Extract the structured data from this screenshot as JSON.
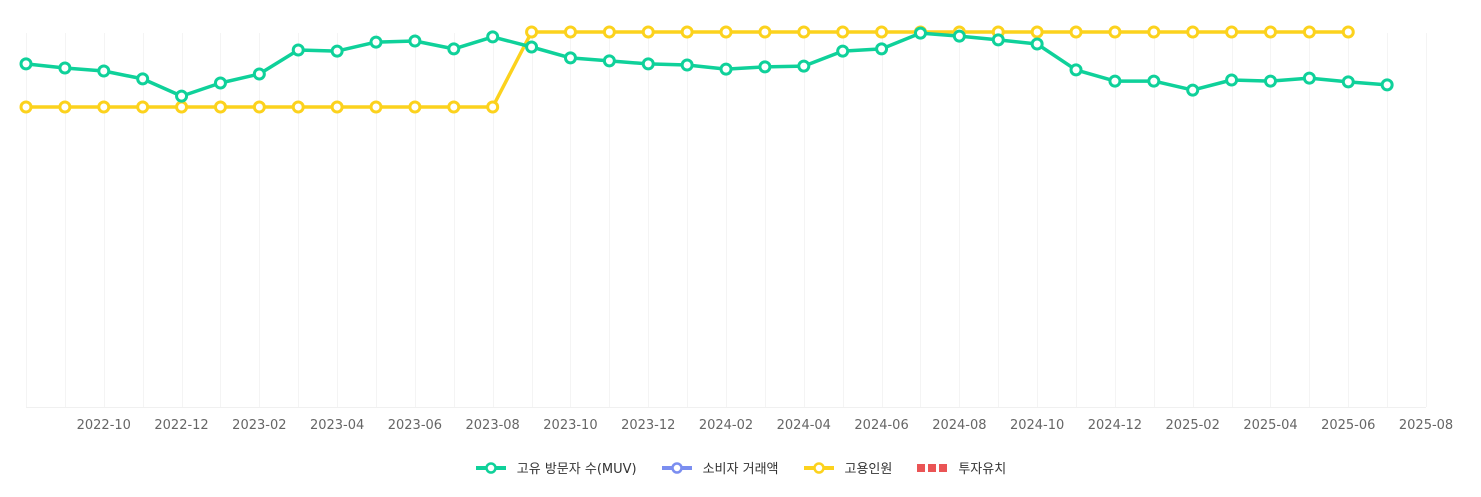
{
  "chart_data": {
    "type": "line",
    "title": "",
    "xlabel": "",
    "ylabel": "",
    "ylim_note": "No y-axis labels shown; values are relative (0-100 scale, estimated from pixel positions)",
    "ylim": [
      0,
      100
    ],
    "grid": {
      "vertical": true,
      "horizontal": false
    },
    "legend_position": "bottom",
    "x": [
      "2022-08",
      "2022-09",
      "2022-10",
      "2022-11",
      "2022-12",
      "2023-01",
      "2023-02",
      "2023-03",
      "2023-04",
      "2023-05",
      "2023-06",
      "2023-07",
      "2023-08",
      "2023-09",
      "2023-10",
      "2023-11",
      "2023-12",
      "2024-01",
      "2024-02",
      "2024-03",
      "2024-04",
      "2024-05",
      "2024-06",
      "2024-07",
      "2024-08",
      "2024-09",
      "2024-10",
      "2024-11",
      "2024-12",
      "2025-01",
      "2025-02",
      "2025-03",
      "2025-04",
      "2025-05",
      "2025-06",
      "2025-07"
    ],
    "tick_labels": [
      "2022-10",
      "2022-12",
      "2023-02",
      "2023-04",
      "2023-06",
      "2023-08",
      "2023-10",
      "2023-12",
      "2024-02",
      "2024-04",
      "2024-06",
      "2024-08",
      "2024-10",
      "2024-12",
      "2025-02",
      "2025-04",
      "2025-06",
      "2025-08"
    ],
    "series": [
      {
        "name": "고유 방문자 수(MUV)",
        "color": "#0fd19a",
        "marker": "hollow-circle",
        "values": [
          91.5,
          90.4,
          89.6,
          87.5,
          82.9,
          86.4,
          88.8,
          95.2,
          94.9,
          97.3,
          97.6,
          95.5,
          98.7,
          96.0,
          93.1,
          92.3,
          91.5,
          91.2,
          90.1,
          90.7,
          90.9,
          94.9,
          95.5,
          99.7,
          98.9,
          97.9,
          96.8,
          89.9,
          86.9,
          86.9,
          84.5,
          87.2,
          86.9,
          87.7,
          86.7,
          85.9
        ]
      },
      {
        "name": "소비자 거래액",
        "color": "#7b8ef0",
        "marker": "hollow-circle",
        "values": []
      },
      {
        "name": "고용인원",
        "color": "#fcd21d",
        "marker": "hollow-circle",
        "values": [
          80,
          80,
          80,
          80,
          80,
          80,
          80,
          80,
          80,
          80,
          80,
          80,
          80,
          100,
          100,
          100,
          100,
          100,
          100,
          100,
          100,
          100,
          100,
          100,
          100,
          100,
          100,
          100,
          100,
          100,
          100,
          100,
          100,
          100,
          100,
          null
        ]
      },
      {
        "name": "투자유치",
        "color": "#ea5455",
        "marker": "dashed-square",
        "values": []
      }
    ]
  },
  "legend": {
    "items": [
      {
        "label": "고유 방문자 수(MUV)",
        "color": "#0fd19a",
        "icon": "line-circle-icon"
      },
      {
        "label": "소비자 거래액",
        "color": "#7b8ef0",
        "icon": "line-circle-icon"
      },
      {
        "label": "고용인원",
        "color": "#fcd21d",
        "icon": "line-circle-icon"
      },
      {
        "label": "투자유치",
        "color": "#ea5455",
        "icon": "dashed-squares-icon"
      }
    ]
  }
}
